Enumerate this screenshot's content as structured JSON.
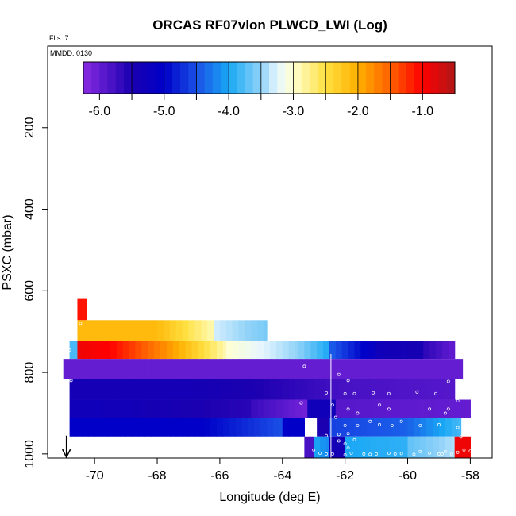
{
  "chart_data": {
    "type": "heatmap",
    "title": "ORCAS RF07vlon PLWCD_LWI (Log)",
    "flts_label": "Flts: 7",
    "date_label": "MMDD: 0130",
    "xlabel": "Longitude (deg E)",
    "ylabel": "PSXC (mbar)",
    "xlim": [
      -71.5,
      -57.3
    ],
    "ylim": [
      1010,
      0
    ],
    "x_ticks": [
      -70,
      -68,
      -66,
      -64,
      -62,
      -60,
      -58
    ],
    "y_ticks": [
      200,
      400,
      600,
      800,
      1000
    ],
    "colorbar": {
      "range": [
        -6.25,
        -0.5
      ],
      "ticks": [
        -6.0,
        -5.0,
        -4.0,
        -3.0,
        -2.0,
        -1.0
      ],
      "tick_labels": [
        "-6.0",
        "-5.0",
        "-4.0",
        "-3.0",
        "-2.0",
        "-1.0"
      ],
      "stops": [
        [
          -6.25,
          "#8a2be2"
        ],
        [
          -5.5,
          "#1a00b0"
        ],
        [
          -5.0,
          "#0000c8"
        ],
        [
          -4.5,
          "#1a50e6"
        ],
        [
          -4.0,
          "#19a8f5"
        ],
        [
          -3.5,
          "#8fd2f8"
        ],
        [
          -3.25,
          "#e6f6ff"
        ],
        [
          -3.0,
          "#ffffd0"
        ],
        [
          -2.5,
          "#ffe040"
        ],
        [
          -2.0,
          "#ffb000"
        ],
        [
          -1.5,
          "#ff6000"
        ],
        [
          -1.0,
          "#ff0000"
        ],
        [
          -0.5,
          "#b01818"
        ]
      ]
    },
    "bands": [
      {
        "p_top": 620,
        "p_bot": 672,
        "segments": [
          {
            "x0": -70.55,
            "x1": -70.25,
            "v0": -1.1,
            "v1": -1.1
          }
        ]
      },
      {
        "p_top": 672,
        "p_bot": 722,
        "segments": [
          {
            "x0": -70.55,
            "x1": -68.0,
            "v0": -2.1,
            "v1": -2.1
          },
          {
            "x0": -68.0,
            "x1": -66.2,
            "v0": -2.1,
            "v1": -2.9
          },
          {
            "x0": -66.2,
            "x1": -64.5,
            "v0": -3.3,
            "v1": -3.6
          }
        ]
      },
      {
        "p_top": 722,
        "p_bot": 767,
        "segments": [
          {
            "x0": -70.8,
            "x1": -70.55,
            "v0": -3.8,
            "v1": -3.8
          },
          {
            "x0": -70.55,
            "x1": -69.5,
            "v0": -0.9,
            "v1": -1.0
          },
          {
            "x0": -69.5,
            "x1": -67.5,
            "v0": -1.0,
            "v1": -1.9
          },
          {
            "x0": -67.5,
            "x1": -65.8,
            "v0": -1.9,
            "v1": -2.9
          },
          {
            "x0": -65.8,
            "x1": -63.5,
            "v0": -3.0,
            "v1": -3.5
          },
          {
            "x0": -63.5,
            "x1": -62.5,
            "v0": -3.5,
            "v1": -4.0
          },
          {
            "x0": -62.5,
            "x1": -61.0,
            "v0": -4.4,
            "v1": -5.2
          },
          {
            "x0": -61.0,
            "x1": -59.5,
            "v0": -5.3,
            "v1": -5.45
          },
          {
            "x0": -59.5,
            "x1": -58.5,
            "v0": -5.6,
            "v1": -6.0
          }
        ]
      },
      {
        "p_top": 767,
        "p_bot": 817,
        "segments": [
          {
            "x0": -71.0,
            "x1": -58.25,
            "v0": -6.0,
            "v1": -6.0
          }
        ]
      },
      {
        "p_top": 817,
        "p_bot": 867,
        "segments": [
          {
            "x0": -70.8,
            "x1": -67.0,
            "v0": -5.4,
            "v1": -5.4
          },
          {
            "x0": -67.0,
            "x1": -65.0,
            "v0": -5.4,
            "v1": -5.5
          },
          {
            "x0": -65.0,
            "x1": -62.0,
            "v0": -5.5,
            "v1": -5.8
          },
          {
            "x0": -62.0,
            "x1": -58.5,
            "v0": -5.8,
            "v1": -5.9
          }
        ]
      },
      {
        "p_top": 867,
        "p_bot": 912,
        "segments": [
          {
            "x0": -70.8,
            "x1": -68.5,
            "v0": -5.3,
            "v1": -5.35
          },
          {
            "x0": -68.5,
            "x1": -65.0,
            "v0": -5.4,
            "v1": -5.6
          },
          {
            "x0": -65.0,
            "x1": -63.2,
            "v0": -5.7,
            "v1": -6.1
          },
          {
            "x0": -63.2,
            "x1": -62.3,
            "v0": -5.3,
            "v1": -5.3
          },
          {
            "x0": -62.3,
            "x1": -58.0,
            "v0": -5.9,
            "v1": -6.0
          }
        ]
      },
      {
        "p_top": 912,
        "p_bot": 957,
        "segments": [
          {
            "x0": -70.8,
            "x1": -66.5,
            "v0": -5.0,
            "v1": -5.0
          },
          {
            "x0": -66.5,
            "x1": -64.0,
            "v0": -5.0,
            "v1": -4.5
          },
          {
            "x0": -64.0,
            "x1": -63.3,
            "v0": -5.0,
            "v1": -5.0
          },
          {
            "x0": -62.9,
            "x1": -62.5,
            "v0": -5.5,
            "v1": -5.5
          },
          {
            "x0": -62.5,
            "x1": -60.0,
            "v0": -4.6,
            "v1": -4.4
          },
          {
            "x0": -60.0,
            "x1": -58.3,
            "v0": -4.4,
            "v1": -3.8
          }
        ]
      },
      {
        "p_top": 957,
        "p_bot": 1010,
        "segments": [
          {
            "x0": -63.3,
            "x1": -63.0,
            "v0": -5.8,
            "v1": -5.8
          },
          {
            "x0": -63.0,
            "x1": -62.5,
            "v0": -4.0,
            "v1": -4.2
          },
          {
            "x0": -62.5,
            "x1": -62.0,
            "v0": -5.4,
            "v1": -5.4
          },
          {
            "x0": -62.0,
            "x1": -60.0,
            "v0": -4.0,
            "v1": -3.9
          },
          {
            "x0": -60.0,
            "x1": -58.5,
            "v0": -3.7,
            "v1": -3.4
          },
          {
            "x0": -58.5,
            "x1": -58.0,
            "v0": -0.9,
            "v1": -0.9
          }
        ]
      }
    ],
    "white_line_x": -62.45,
    "arrow_x": -70.9,
    "observations": [
      [
        -70.45,
        680
      ],
      [
        -70.8,
        745
      ],
      [
        -70.75,
        820
      ],
      [
        -70.85,
        955
      ],
      [
        -63.3,
        785
      ],
      [
        -62.2,
        805
      ],
      [
        -61.9,
        820
      ],
      [
        -62.6,
        850
      ],
      [
        -62.0,
        852
      ],
      [
        -61.7,
        852
      ],
      [
        -61.1,
        850
      ],
      [
        -60.6,
        852
      ],
      [
        -59.7,
        848
      ],
      [
        -59.1,
        852
      ],
      [
        -58.7,
        822
      ],
      [
        -62.4,
        880
      ],
      [
        -61.9,
        890
      ],
      [
        -61.6,
        900
      ],
      [
        -60.9,
        880
      ],
      [
        -60.6,
        890
      ],
      [
        -59.3,
        890
      ],
      [
        -58.7,
        890
      ],
      [
        -58.4,
        870
      ],
      [
        -58.8,
        900
      ],
      [
        -63.4,
        875
      ],
      [
        -62.3,
        910
      ],
      [
        -62.0,
        930
      ],
      [
        -61.6,
        930
      ],
      [
        -61.2,
        920
      ],
      [
        -60.9,
        928
      ],
      [
        -60.5,
        930
      ],
      [
        -60.2,
        920
      ],
      [
        -59.6,
        930
      ],
      [
        -59.0,
        928
      ],
      [
        -58.4,
        935
      ],
      [
        -62.6,
        955
      ],
      [
        -62.2,
        952
      ],
      [
        -61.9,
        950
      ],
      [
        -58.0,
        948
      ],
      [
        -58.3,
        958
      ],
      [
        -62.2,
        968
      ],
      [
        -62.0,
        975
      ],
      [
        -61.9,
        985
      ],
      [
        -61.7,
        965
      ],
      [
        -63.0,
        990
      ],
      [
        -62.8,
        998
      ],
      [
        -62.6,
        1000
      ],
      [
        -62.4,
        1000
      ],
      [
        -62.0,
        1002
      ],
      [
        -61.8,
        998
      ],
      [
        -61.4,
        1000
      ],
      [
        -61.2,
        1001
      ],
      [
        -61.0,
        1000
      ],
      [
        -60.6,
        998
      ],
      [
        -60.4,
        1000
      ],
      [
        -60.2,
        999
      ],
      [
        -59.8,
        1001
      ],
      [
        -59.6,
        994
      ],
      [
        -59.3,
        998
      ],
      [
        -59.0,
        1000
      ],
      [
        -58.8,
        994
      ],
      [
        -58.6,
        1000
      ],
      [
        -58.4,
        996
      ],
      [
        -58.2,
        990
      ],
      [
        -58.0,
        993
      ],
      [
        -58.9,
        1000
      ]
    ]
  }
}
